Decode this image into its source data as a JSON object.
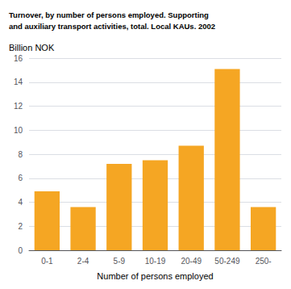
{
  "chart_data": {
    "type": "bar",
    "title": "Turnover, by number of persons employed. Supporting\nand auxiliary transport activities, total. Local KAUs. 2002",
    "ylabel": "Billion NOK",
    "xlabel": "Number of persons employed",
    "categories": [
      "0-1",
      "2-4",
      "5-9",
      "10-19",
      "20-49",
      "50-249",
      "250-"
    ],
    "values": [
      4.9,
      3.6,
      7.2,
      7.5,
      8.7,
      15.1,
      3.6
    ],
    "color": "#F5A623",
    "ylim": [
      0,
      16
    ],
    "yticks": [
      0,
      2,
      4,
      6,
      8,
      10,
      12,
      14,
      16
    ],
    "grid": true
  }
}
